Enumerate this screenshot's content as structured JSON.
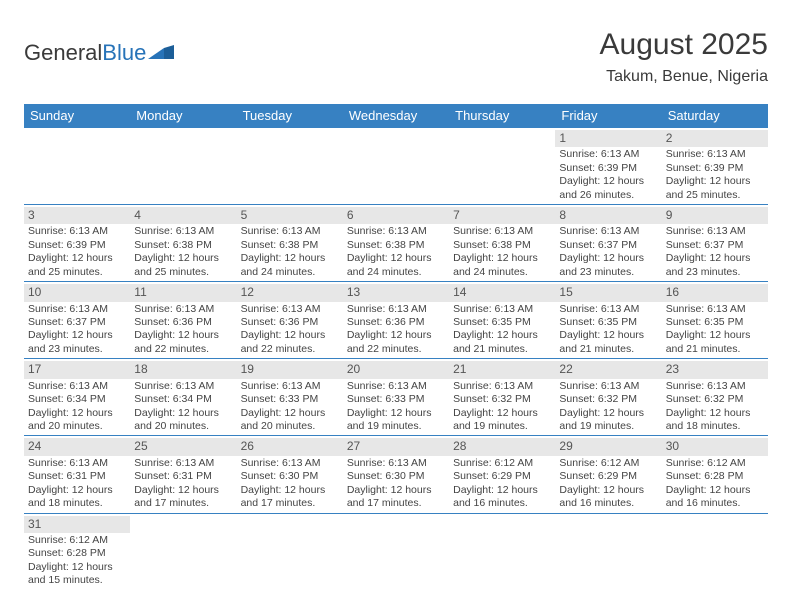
{
  "colors": {
    "header_bg": "#3781c2",
    "header_text": "#ffffff",
    "daynum_bg": "#e7e7e7",
    "daynum_text": "#555555",
    "body_text": "#444444",
    "row_border": "#3781c2",
    "logo_blue": "#2773b8"
  },
  "logo": {
    "part1": "General",
    "part2": "Blue"
  },
  "title": {
    "month": "August 2025",
    "location": "Takum, Benue, Nigeria"
  },
  "day_headers": [
    "Sunday",
    "Monday",
    "Tuesday",
    "Wednesday",
    "Thursday",
    "Friday",
    "Saturday"
  ],
  "weeks": [
    [
      {
        "blank": true
      },
      {
        "blank": true
      },
      {
        "blank": true
      },
      {
        "blank": true
      },
      {
        "blank": true
      },
      {
        "num": "1",
        "sunrise": "Sunrise: 6:13 AM",
        "sunset": "Sunset: 6:39 PM",
        "day1": "Daylight: 12 hours",
        "day2": "and 26 minutes."
      },
      {
        "num": "2",
        "sunrise": "Sunrise: 6:13 AM",
        "sunset": "Sunset: 6:39 PM",
        "day1": "Daylight: 12 hours",
        "day2": "and 25 minutes."
      }
    ],
    [
      {
        "num": "3",
        "sunrise": "Sunrise: 6:13 AM",
        "sunset": "Sunset: 6:39 PM",
        "day1": "Daylight: 12 hours",
        "day2": "and 25 minutes."
      },
      {
        "num": "4",
        "sunrise": "Sunrise: 6:13 AM",
        "sunset": "Sunset: 6:38 PM",
        "day1": "Daylight: 12 hours",
        "day2": "and 25 minutes."
      },
      {
        "num": "5",
        "sunrise": "Sunrise: 6:13 AM",
        "sunset": "Sunset: 6:38 PM",
        "day1": "Daylight: 12 hours",
        "day2": "and 24 minutes."
      },
      {
        "num": "6",
        "sunrise": "Sunrise: 6:13 AM",
        "sunset": "Sunset: 6:38 PM",
        "day1": "Daylight: 12 hours",
        "day2": "and 24 minutes."
      },
      {
        "num": "7",
        "sunrise": "Sunrise: 6:13 AM",
        "sunset": "Sunset: 6:38 PM",
        "day1": "Daylight: 12 hours",
        "day2": "and 24 minutes."
      },
      {
        "num": "8",
        "sunrise": "Sunrise: 6:13 AM",
        "sunset": "Sunset: 6:37 PM",
        "day1": "Daylight: 12 hours",
        "day2": "and 23 minutes."
      },
      {
        "num": "9",
        "sunrise": "Sunrise: 6:13 AM",
        "sunset": "Sunset: 6:37 PM",
        "day1": "Daylight: 12 hours",
        "day2": "and 23 minutes."
      }
    ],
    [
      {
        "num": "10",
        "sunrise": "Sunrise: 6:13 AM",
        "sunset": "Sunset: 6:37 PM",
        "day1": "Daylight: 12 hours",
        "day2": "and 23 minutes."
      },
      {
        "num": "11",
        "sunrise": "Sunrise: 6:13 AM",
        "sunset": "Sunset: 6:36 PM",
        "day1": "Daylight: 12 hours",
        "day2": "and 22 minutes."
      },
      {
        "num": "12",
        "sunrise": "Sunrise: 6:13 AM",
        "sunset": "Sunset: 6:36 PM",
        "day1": "Daylight: 12 hours",
        "day2": "and 22 minutes."
      },
      {
        "num": "13",
        "sunrise": "Sunrise: 6:13 AM",
        "sunset": "Sunset: 6:36 PM",
        "day1": "Daylight: 12 hours",
        "day2": "and 22 minutes."
      },
      {
        "num": "14",
        "sunrise": "Sunrise: 6:13 AM",
        "sunset": "Sunset: 6:35 PM",
        "day1": "Daylight: 12 hours",
        "day2": "and 21 minutes."
      },
      {
        "num": "15",
        "sunrise": "Sunrise: 6:13 AM",
        "sunset": "Sunset: 6:35 PM",
        "day1": "Daylight: 12 hours",
        "day2": "and 21 minutes."
      },
      {
        "num": "16",
        "sunrise": "Sunrise: 6:13 AM",
        "sunset": "Sunset: 6:35 PM",
        "day1": "Daylight: 12 hours",
        "day2": "and 21 minutes."
      }
    ],
    [
      {
        "num": "17",
        "sunrise": "Sunrise: 6:13 AM",
        "sunset": "Sunset: 6:34 PM",
        "day1": "Daylight: 12 hours",
        "day2": "and 20 minutes."
      },
      {
        "num": "18",
        "sunrise": "Sunrise: 6:13 AM",
        "sunset": "Sunset: 6:34 PM",
        "day1": "Daylight: 12 hours",
        "day2": "and 20 minutes."
      },
      {
        "num": "19",
        "sunrise": "Sunrise: 6:13 AM",
        "sunset": "Sunset: 6:33 PM",
        "day1": "Daylight: 12 hours",
        "day2": "and 20 minutes."
      },
      {
        "num": "20",
        "sunrise": "Sunrise: 6:13 AM",
        "sunset": "Sunset: 6:33 PM",
        "day1": "Daylight: 12 hours",
        "day2": "and 19 minutes."
      },
      {
        "num": "21",
        "sunrise": "Sunrise: 6:13 AM",
        "sunset": "Sunset: 6:32 PM",
        "day1": "Daylight: 12 hours",
        "day2": "and 19 minutes."
      },
      {
        "num": "22",
        "sunrise": "Sunrise: 6:13 AM",
        "sunset": "Sunset: 6:32 PM",
        "day1": "Daylight: 12 hours",
        "day2": "and 19 minutes."
      },
      {
        "num": "23",
        "sunrise": "Sunrise: 6:13 AM",
        "sunset": "Sunset: 6:32 PM",
        "day1": "Daylight: 12 hours",
        "day2": "and 18 minutes."
      }
    ],
    [
      {
        "num": "24",
        "sunrise": "Sunrise: 6:13 AM",
        "sunset": "Sunset: 6:31 PM",
        "day1": "Daylight: 12 hours",
        "day2": "and 18 minutes."
      },
      {
        "num": "25",
        "sunrise": "Sunrise: 6:13 AM",
        "sunset": "Sunset: 6:31 PM",
        "day1": "Daylight: 12 hours",
        "day2": "and 17 minutes."
      },
      {
        "num": "26",
        "sunrise": "Sunrise: 6:13 AM",
        "sunset": "Sunset: 6:30 PM",
        "day1": "Daylight: 12 hours",
        "day2": "and 17 minutes."
      },
      {
        "num": "27",
        "sunrise": "Sunrise: 6:13 AM",
        "sunset": "Sunset: 6:30 PM",
        "day1": "Daylight: 12 hours",
        "day2": "and 17 minutes."
      },
      {
        "num": "28",
        "sunrise": "Sunrise: 6:12 AM",
        "sunset": "Sunset: 6:29 PM",
        "day1": "Daylight: 12 hours",
        "day2": "and 16 minutes."
      },
      {
        "num": "29",
        "sunrise": "Sunrise: 6:12 AM",
        "sunset": "Sunset: 6:29 PM",
        "day1": "Daylight: 12 hours",
        "day2": "and 16 minutes."
      },
      {
        "num": "30",
        "sunrise": "Sunrise: 6:12 AM",
        "sunset": "Sunset: 6:28 PM",
        "day1": "Daylight: 12 hours",
        "day2": "and 16 minutes."
      }
    ],
    [
      {
        "num": "31",
        "sunrise": "Sunrise: 6:12 AM",
        "sunset": "Sunset: 6:28 PM",
        "day1": "Daylight: 12 hours",
        "day2": "and 15 minutes."
      },
      {
        "blank": true
      },
      {
        "blank": true
      },
      {
        "blank": true
      },
      {
        "blank": true
      },
      {
        "blank": true
      },
      {
        "blank": true
      }
    ]
  ]
}
